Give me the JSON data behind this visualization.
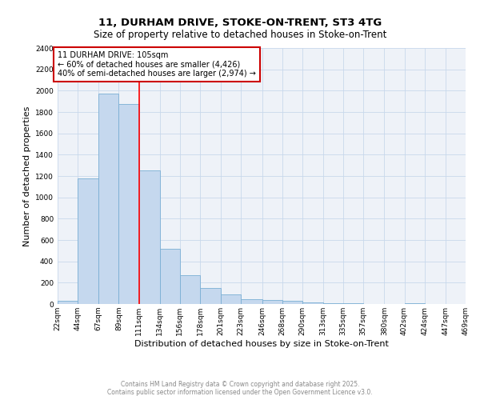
{
  "title_line1": "11, DURHAM DRIVE, STOKE-ON-TRENT, ST3 4TG",
  "title_line2": "Size of property relative to detached houses in Stoke-on-Trent",
  "xlabel": "Distribution of detached houses by size in Stoke-on-Trent",
  "ylabel": "Number of detached properties",
  "bin_labels": [
    "22sqm",
    "44sqm",
    "67sqm",
    "89sqm",
    "111sqm",
    "134sqm",
    "156sqm",
    "178sqm",
    "201sqm",
    "223sqm",
    "246sqm",
    "268sqm",
    "290sqm",
    "313sqm",
    "335sqm",
    "357sqm",
    "380sqm",
    "402sqm",
    "424sqm",
    "447sqm",
    "469sqm"
  ],
  "bin_edges": [
    22,
    44,
    67,
    89,
    111,
    134,
    156,
    178,
    201,
    223,
    246,
    268,
    290,
    313,
    335,
    357,
    380,
    402,
    424,
    447,
    469
  ],
  "bar_heights": [
    30,
    1175,
    1975,
    1875,
    1250,
    520,
    270,
    150,
    90,
    45,
    35,
    30,
    15,
    5,
    5,
    3,
    2,
    5,
    1,
    1,
    0
  ],
  "bar_color": "#c5d8ee",
  "bar_edge_color": "#7aafd4",
  "red_line_x": 111,
  "ylim": [
    0,
    2400
  ],
  "yticks": [
    0,
    200,
    400,
    600,
    800,
    1000,
    1200,
    1400,
    1600,
    1800,
    2000,
    2200,
    2400
  ],
  "annotation_text": "11 DURHAM DRIVE: 105sqm\n← 60% of detached houses are smaller (4,426)\n40% of semi-detached houses are larger (2,974) →",
  "annotation_box_color": "#ffffff",
  "annotation_box_edge": "#cc0000",
  "grid_color": "#c8d8ec",
  "background_color": "#eef2f8",
  "footer_text": "Contains HM Land Registry data © Crown copyright and database right 2025.\nContains public sector information licensed under the Open Government Licence v3.0.",
  "title_fontsize": 9.5,
  "subtitle_fontsize": 8.5,
  "axis_label_fontsize": 8,
  "tick_fontsize": 6.5,
  "annotation_fontsize": 7,
  "footer_fontsize": 5.5
}
